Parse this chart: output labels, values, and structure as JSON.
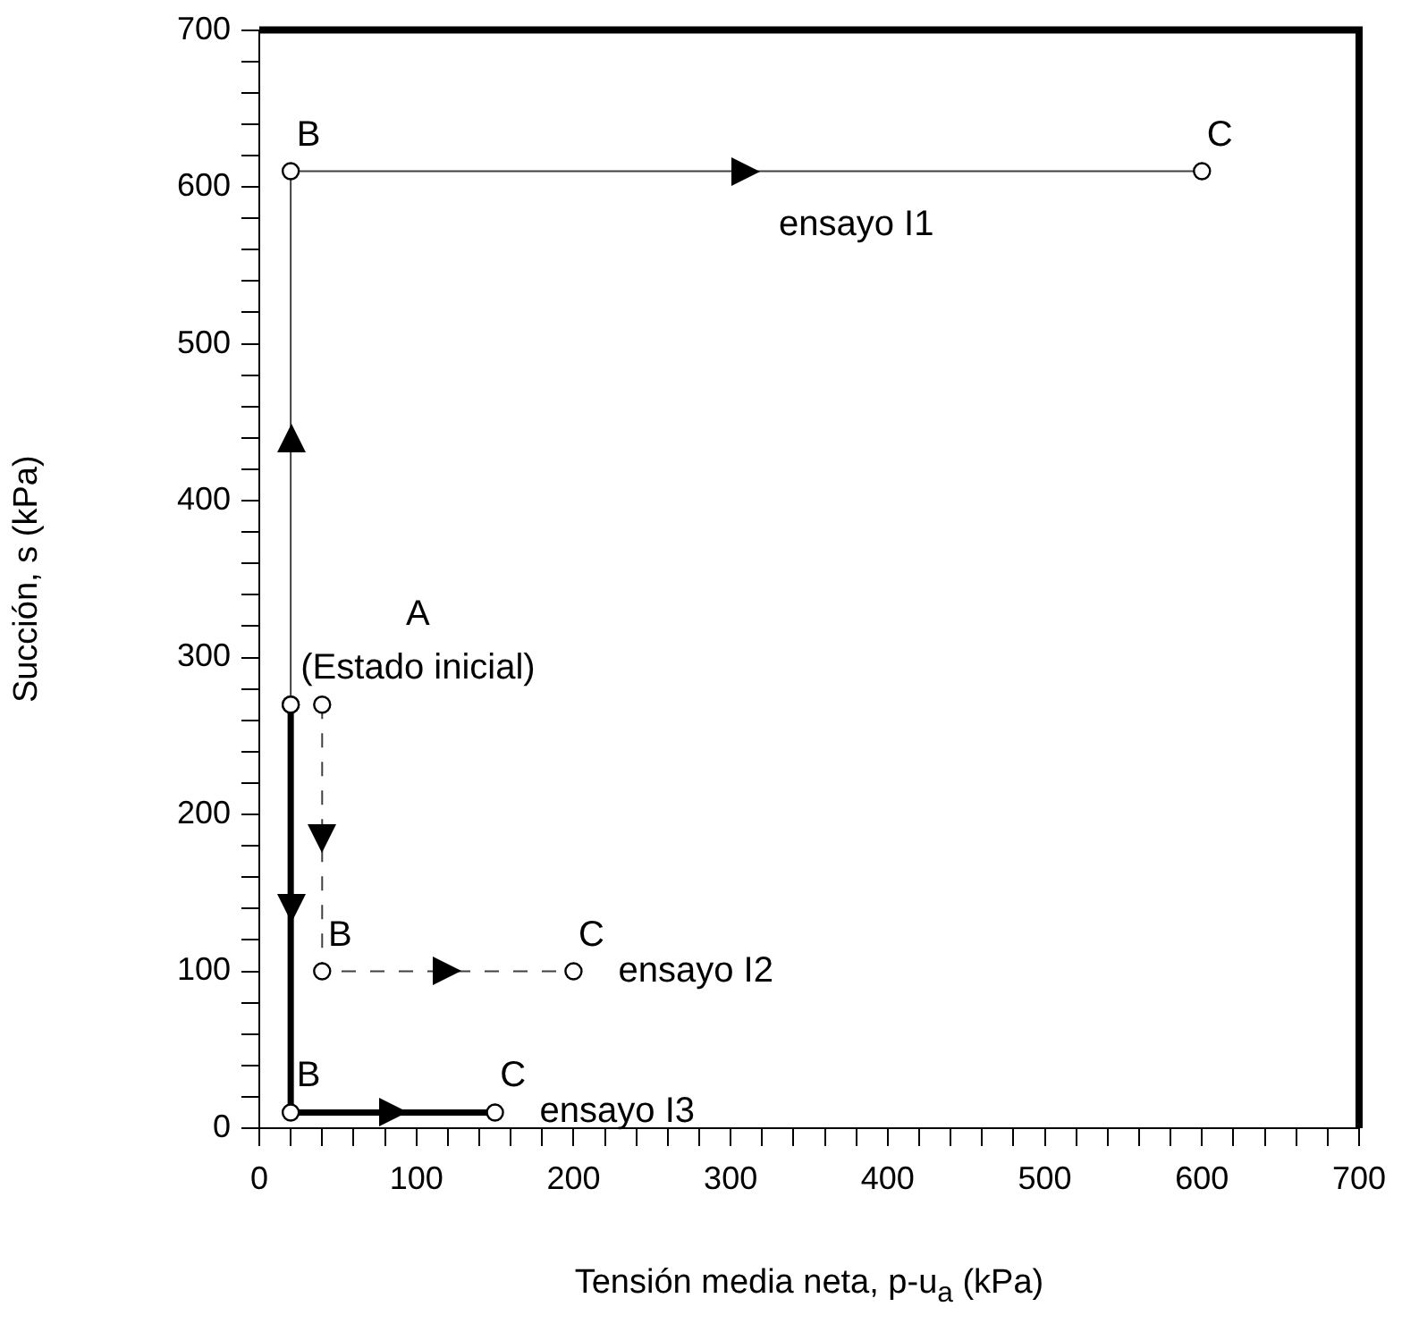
{
  "chart_data": {
    "type": "line",
    "xlabel": "Tensión media neta, p-u$_{a}$ (kPa)",
    "ylabel": "Succión, s (kPa)",
    "xlim": [
      0,
      700
    ],
    "ylim": [
      0,
      700
    ],
    "xticks": [
      0,
      {
        "value": 20,
        "label": null
      },
      {
        "value": 40,
        "label": null
      },
      {
        "value": 60,
        "label": null
      },
      {
        "value": 80,
        "label": null
      },
      100,
      {
        "value": 120,
        "label": null
      },
      {
        "value": 140,
        "label": null
      },
      {
        "value": 160,
        "label": null
      },
      {
        "value": 180,
        "label": null
      },
      200,
      {
        "value": 220,
        "label": null
      },
      {
        "value": 240,
        "label": null
      },
      {
        "value": 260,
        "label": null
      },
      {
        "value": 280,
        "label": null
      },
      300,
      {
        "value": 320,
        "label": null
      },
      {
        "value": 340,
        "label": null
      },
      {
        "value": 360,
        "label": null
      },
      {
        "value": 380,
        "label": null
      },
      400,
      {
        "value": 420,
        "label": null
      },
      {
        "value": 440,
        "label": null
      },
      {
        "value": 460,
        "label": null
      },
      {
        "value": 480,
        "label": null
      },
      500,
      {
        "value": 520,
        "label": null
      },
      {
        "value": 540,
        "label": null
      },
      {
        "value": 560,
        "label": null
      },
      {
        "value": 580,
        "label": null
      },
      600,
      {
        "value": 620,
        "label": null
      },
      {
        "value": 640,
        "label": null
      },
      {
        "value": 660,
        "label": null
      },
      {
        "value": 680,
        "label": null
      },
      700
    ],
    "yticks": [
      0,
      {
        "value": 20,
        "label": null
      },
      {
        "value": 40,
        "label": null
      },
      {
        "value": 60,
        "label": null
      },
      {
        "value": 80,
        "label": null
      },
      100,
      {
        "value": 120,
        "label": null
      },
      {
        "value": 140,
        "label": null
      },
      {
        "value": 160,
        "label": null
      },
      {
        "value": 180,
        "label": null
      },
      200,
      {
        "value": 220,
        "label": null
      },
      {
        "value": 240,
        "label": null
      },
      {
        "value": 260,
        "label": null
      },
      {
        "value": 280,
        "label": null
      },
      300,
      {
        "value": 320,
        "label": null
      },
      {
        "value": 340,
        "label": null
      },
      {
        "value": 360,
        "label": null
      },
      {
        "value": 380,
        "label": null
      },
      400,
      {
        "value": 420,
        "label": null
      },
      {
        "value": 440,
        "label": null
      },
      {
        "value": 460,
        "label": null
      },
      {
        "value": 480,
        "label": null
      },
      500,
      {
        "value": 520,
        "label": null
      },
      {
        "value": 540,
        "label": null
      },
      {
        "value": 560,
        "label": null
      },
      {
        "value": 580,
        "label": null
      },
      600,
      {
        "value": 620,
        "label": null
      },
      {
        "value": 640,
        "label": null
      },
      {
        "value": 660,
        "label": null
      },
      {
        "value": 680,
        "label": null
      },
      700
    ],
    "grid": false,
    "legend": false,
    "marker": "circle",
    "series": [
      {
        "color": "#404040",
        "x": [
          20,
          20,
          600
        ],
        "values": [
          270,
          610,
          610
        ],
        "line_style": "solid"
      },
      {
        "color": "#404040",
        "x": [
          40,
          40,
          200
        ],
        "values": [
          270,
          100,
          100
        ],
        "line_style": "dashed"
      },
      {
        "color": "#000000",
        "x": [
          20,
          20,
          150
        ],
        "values": [
          270,
          10,
          10
        ],
        "line_style": "solid"
      }
    ],
    "annotations": [
      {
        "text": "A\n(Estado inicial)",
        "x": 40,
        "y": 270
      },
      {
        "text": "B",
        "x": 20,
        "y": 610
      },
      {
        "text": "C",
        "x": 600,
        "y": 610
      },
      {
        "text": "ensayo I1",
        "x": 380,
        "y": 610
      },
      {
        "text": "B",
        "x": 40,
        "y": 100
      },
      {
        "text": "C",
        "x": 200,
        "y": 100
      },
      {
        "text": "ensayo I2",
        "x": 200,
        "y": 100
      },
      {
        "text": "B",
        "x": 20,
        "y": 10
      },
      {
        "text": "C",
        "x": 150,
        "y": 10
      },
      {
        "text": "ensayo I3",
        "x": 150,
        "y": 10
      }
    ]
  }
}
